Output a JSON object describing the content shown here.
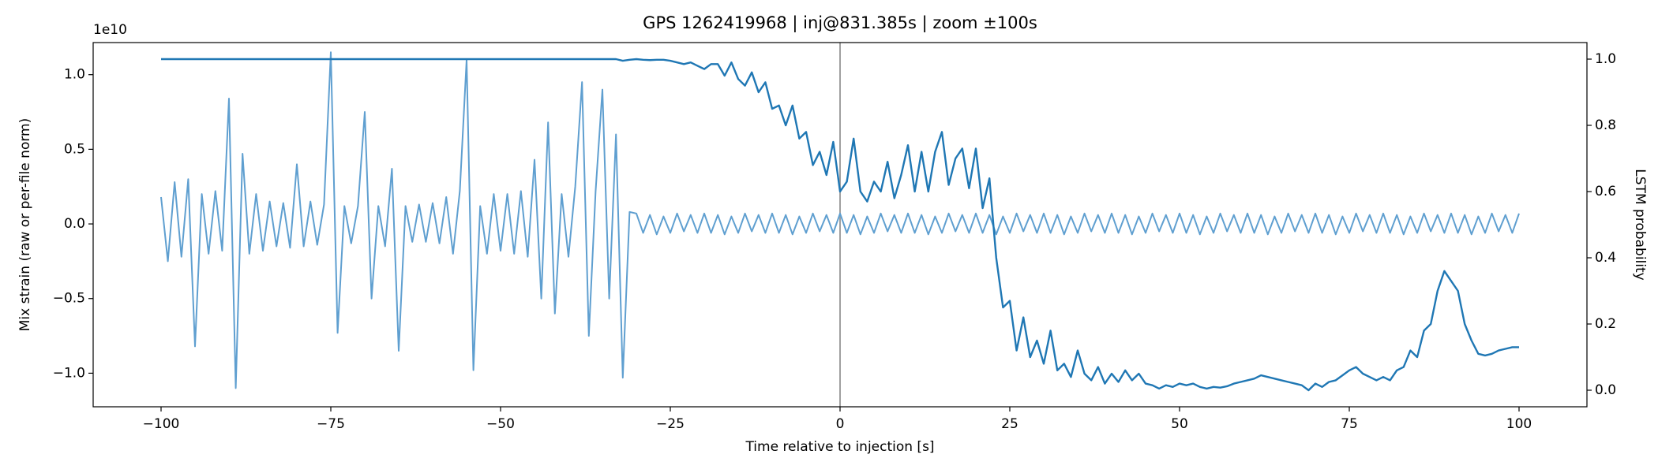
{
  "chart_data": {
    "type": "line",
    "title": "GPS 1262419968 | inj@831.385s | zoom ±100s",
    "x_label": "Time relative to injection [s]",
    "y_label": "Mix strain (raw or per-file norm)",
    "y2_label": "LSTM probability",
    "y_offset_label": "1e10",
    "xlim": [
      -110,
      110
    ],
    "xticks": [
      {
        "value": -100,
        "label": "−100"
      },
      {
        "value": -75,
        "label": "−75"
      },
      {
        "value": -50,
        "label": "−50"
      },
      {
        "value": -25,
        "label": "−25"
      },
      0,
      25,
      50,
      75,
      100
    ],
    "ylim": [
      -1.225,
      1.215
    ],
    "yticks": [
      {
        "value": -1,
        "label": "−1.0"
      },
      {
        "value": -0.5,
        "label": "−0.5"
      },
      {
        "value": 0,
        "label": "0.0"
      },
      {
        "value": 0.5,
        "label": "0.5"
      },
      {
        "value": 1,
        "label": "1.0"
      }
    ],
    "y2lim": [
      -0.05,
      1.05
    ],
    "y2ticks": [
      {
        "value": 0,
        "label": "0.0"
      },
      {
        "value": 0.2,
        "label": "0.2"
      },
      {
        "value": 0.4,
        "label": "0.4"
      },
      {
        "value": 0.6,
        "label": "0.6"
      },
      {
        "value": 0.8,
        "label": "0.8"
      },
      {
        "value": 1,
        "label": "1.0"
      }
    ],
    "vertical_line": {
      "x": 0,
      "color": "#a0a0a0"
    },
    "x": [
      -100,
      -99,
      -98,
      -97,
      -96,
      -95,
      -94,
      -93,
      -92,
      -91,
      -90,
      -89,
      -88,
      -87,
      -86,
      -85,
      -84,
      -83,
      -82,
      -81,
      -80,
      -79,
      -78,
      -77,
      -76,
      -75,
      -74,
      -73,
      -72,
      -71,
      -70,
      -69,
      -68,
      -67,
      -66,
      -65,
      -64,
      -63,
      -62,
      -61,
      -60,
      -59,
      -58,
      -57,
      -56,
      -55,
      -54,
      -53,
      -52,
      -51,
      -50,
      -49,
      -48,
      -47,
      -46,
      -45,
      -44,
      -43,
      -42,
      -41,
      -40,
      -39,
      -38,
      -37,
      -36,
      -35,
      -34,
      -33,
      -32,
      -31,
      -30,
      -29,
      -28,
      -27,
      -26,
      -25,
      -24,
      -23,
      -22,
      -21,
      -20,
      -19,
      -18,
      -17,
      -16,
      -15,
      -14,
      -13,
      -12,
      -11,
      -10,
      -9,
      -8,
      -7,
      -6,
      -5,
      -4,
      -3,
      -2,
      -1,
      0,
      1,
      2,
      3,
      4,
      5,
      6,
      7,
      8,
      9,
      10,
      11,
      12,
      13,
      14,
      15,
      16,
      17,
      18,
      19,
      20,
      21,
      22,
      23,
      24,
      25,
      26,
      27,
      28,
      29,
      30,
      31,
      32,
      33,
      34,
      35,
      36,
      37,
      38,
      39,
      40,
      41,
      42,
      43,
      44,
      45,
      46,
      47,
      48,
      49,
      50,
      51,
      52,
      53,
      54,
      55,
      56,
      57,
      58,
      59,
      60,
      61,
      62,
      63,
      64,
      65,
      66,
      67,
      68,
      69,
      70,
      71,
      72,
      73,
      74,
      75,
      76,
      77,
      78,
      79,
      80,
      81,
      82,
      83,
      84,
      85,
      86,
      87,
      88,
      89,
      90,
      91,
      92,
      93,
      94,
      95,
      96,
      97,
      98,
      99,
      100
    ],
    "series": [
      {
        "color": "#5f9fd0",
        "axis": "y",
        "values": [
          0.18,
          -0.25,
          0.28,
          -0.22,
          0.3,
          -0.82,
          0.2,
          -0.2,
          0.22,
          -0.18,
          0.84,
          -1.1,
          0.47,
          -0.2,
          0.2,
          -0.18,
          0.15,
          -0.15,
          0.14,
          -0.16,
          0.4,
          -0.15,
          0.15,
          -0.14,
          0.13,
          1.15,
          -0.73,
          0.12,
          -0.13,
          0.12,
          0.75,
          -0.5,
          0.12,
          -0.15,
          0.37,
          -0.85,
          0.12,
          -0.12,
          0.13,
          -0.12,
          0.14,
          -0.13,
          0.18,
          -0.2,
          0.22,
          1.1,
          -0.98,
          0.12,
          -0.2,
          0.2,
          -0.18,
          0.2,
          -0.2,
          0.22,
          -0.22,
          0.43,
          -0.5,
          0.68,
          -0.6,
          0.2,
          -0.22,
          0.25,
          0.95,
          -0.75,
          0.22,
          0.9,
          -0.5,
          0.6,
          -1.03,
          0.08,
          0.07,
          -0.06,
          0.06,
          -0.07,
          0.05,
          -0.06,
          0.07,
          -0.05,
          0.06,
          -0.06,
          0.07,
          -0.06,
          0.06,
          -0.07,
          0.05,
          -0.06,
          0.07,
          -0.05,
          0.06,
          -0.06,
          0.07,
          -0.06,
          0.06,
          -0.07,
          0.05,
          -0.06,
          0.07,
          -0.05,
          0.06,
          -0.06,
          0.07,
          -0.06,
          0.06,
          -0.07,
          0.05,
          -0.06,
          0.07,
          -0.05,
          0.06,
          -0.06,
          0.07,
          -0.06,
          0.06,
          -0.07,
          0.05,
          -0.06,
          0.07,
          -0.05,
          0.06,
          -0.06,
          0.07,
          -0.06,
          0.06,
          -0.07,
          0.05,
          -0.06,
          0.07,
          -0.05,
          0.06,
          -0.06,
          0.07,
          -0.06,
          0.06,
          -0.07,
          0.05,
          -0.06,
          0.07,
          -0.05,
          0.06,
          -0.06,
          0.07,
          -0.06,
          0.06,
          -0.07,
          0.05,
          -0.06,
          0.07,
          -0.05,
          0.06,
          -0.06,
          0.07,
          -0.06,
          0.06,
          -0.07,
          0.05,
          -0.06,
          0.07,
          -0.05,
          0.06,
          -0.06,
          0.07,
          -0.06,
          0.06,
          -0.07,
          0.05,
          -0.06,
          0.07,
          -0.05,
          0.06,
          -0.06,
          0.07,
          -0.06,
          0.06,
          -0.07,
          0.05,
          -0.06,
          0.07,
          -0.05,
          0.06,
          -0.06,
          0.07,
          -0.06,
          0.06,
          -0.07,
          0.05,
          -0.06,
          0.07,
          -0.05,
          0.06,
          -0.06,
          0.07,
          -0.06,
          0.06,
          -0.07,
          0.05,
          -0.06,
          0.07,
          -0.05,
          0.06,
          -0.06,
          0.07
        ]
      },
      {
        "color": "#1f77b4",
        "axis": "y2",
        "values": [
          1,
          1,
          1,
          1,
          1,
          1,
          1,
          1,
          1,
          1,
          1,
          1,
          1,
          1,
          1,
          1,
          1,
          1,
          1,
          1,
          1,
          1,
          1,
          1,
          1,
          1,
          1,
          1,
          1,
          1,
          1,
          1,
          1,
          1,
          1,
          1,
          1,
          1,
          1,
          1,
          1,
          1,
          1,
          1,
          1,
          1,
          1,
          1,
          1,
          1,
          1,
          1,
          1,
          1,
          1,
          1,
          1,
          1,
          1,
          1,
          1,
          1,
          1,
          1,
          1,
          1,
          1,
          1,
          0.995,
          0.998,
          1,
          0.998,
          0.997,
          0.998,
          0.998,
          0.995,
          0.99,
          0.985,
          0.99,
          0.98,
          0.97,
          0.985,
          0.985,
          0.95,
          0.99,
          0.94,
          0.92,
          0.96,
          0.9,
          0.93,
          0.85,
          0.86,
          0.8,
          0.86,
          0.76,
          0.78,
          0.68,
          0.72,
          0.65,
          0.75,
          0.6,
          0.63,
          0.76,
          0.6,
          0.57,
          0.63,
          0.6,
          0.69,
          0.58,
          0.65,
          0.74,
          0.6,
          0.72,
          0.6,
          0.72,
          0.78,
          0.62,
          0.7,
          0.73,
          0.61,
          0.73,
          0.55,
          0.64,
          0.4,
          0.25,
          0.27,
          0.12,
          0.22,
          0.1,
          0.15,
          0.08,
          0.18,
          0.06,
          0.08,
          0.04,
          0.12,
          0.05,
          0.03,
          0.07,
          0.02,
          0.05,
          0.025,
          0.06,
          0.03,
          0.05,
          0.02,
          0.015,
          0.005,
          0.015,
          0.01,
          0.02,
          0.015,
          0.02,
          0.01,
          0.005,
          0.01,
          0.008,
          0.012,
          0.02,
          0.025,
          0.03,
          0.035,
          0.045,
          0.04,
          0.035,
          0.03,
          0.025,
          0.02,
          0.015,
          0,
          0.02,
          0.01,
          0.025,
          0.03,
          0.045,
          0.06,
          0.07,
          0.05,
          0.04,
          0.03,
          0.04,
          0.03,
          0.06,
          0.07,
          0.12,
          0.1,
          0.18,
          0.2,
          0.3,
          0.36,
          0.33,
          0.3,
          0.2,
          0.15,
          0.11,
          0.105,
          0.11,
          0.12,
          0.125,
          0.13,
          0.13
        ]
      }
    ]
  }
}
